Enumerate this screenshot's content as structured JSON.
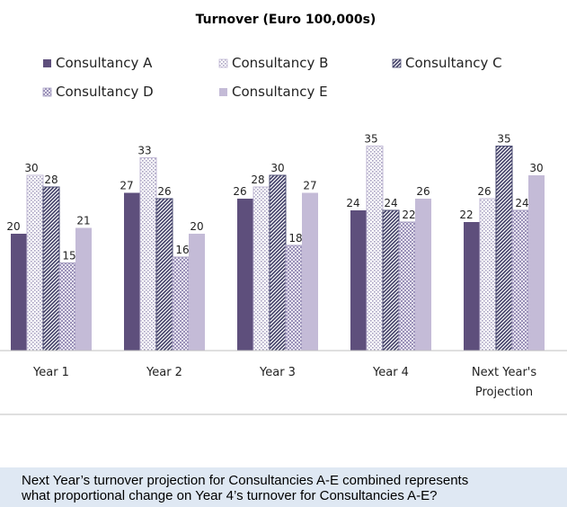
{
  "chart_data": {
    "type": "bar",
    "title": "Turnover (Euro 100,000s)",
    "categories": [
      "Year 1",
      "Year 2",
      "Year 3",
      "Year 4",
      "Next Year's Projection"
    ],
    "category_lines": [
      [
        "Year 1"
      ],
      [
        "Year 2"
      ],
      [
        "Year 3"
      ],
      [
        "Year 4"
      ],
      [
        "Next Year's",
        "Projection"
      ]
    ],
    "series": [
      {
        "name": "Consultancy A",
        "values": [
          20,
          27,
          26,
          24,
          22
        ],
        "color": "#5e4f7c",
        "pattern": "solid"
      },
      {
        "name": "Consultancy B",
        "values": [
          30,
          33,
          28,
          35,
          26
        ],
        "color": "#c2bad6",
        "pattern": "dots"
      },
      {
        "name": "Consultancy C",
        "values": [
          28,
          26,
          30,
          24,
          35
        ],
        "color": "#4e4e74",
        "pattern": "diagonal"
      },
      {
        "name": "Consultancy D",
        "values": [
          15,
          16,
          18,
          22,
          24
        ],
        "color": "#a49cc0",
        "pattern": "checker"
      },
      {
        "name": "Consultancy E",
        "values": [
          21,
          20,
          27,
          26,
          30
        ],
        "color": "#c4bbd7",
        "pattern": "solid"
      }
    ],
    "ylim": [
      0,
      40
    ],
    "grid": false,
    "legend_position": "top"
  },
  "question": {
    "line1": "Next Year’s turnover projection for Consultancies A-E combined represents",
    "line2": "what proportional change on Year 4’s turnover for Consultancies A-E?"
  }
}
